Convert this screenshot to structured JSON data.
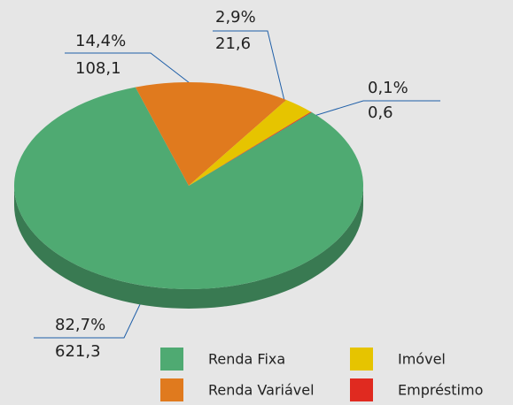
{
  "chart_data": {
    "type": "pie",
    "categories": [
      "Renda Fixa",
      "Renda Variável",
      "Imóvel",
      "Empréstimo"
    ],
    "values": [
      82.7,
      14.4,
      2.9,
      0.1
    ],
    "value_labels": [
      "82,7%",
      "14,4%",
      "2,9%",
      "0,1%"
    ],
    "amounts": [
      621.3,
      108.1,
      21.6,
      0.6
    ],
    "amount_labels": [
      "621,3",
      "108,1",
      "21,6",
      "0,6"
    ],
    "colors": [
      "#4faa72",
      "#e07a1e",
      "#e6c400",
      "#e02a20"
    ],
    "legend": "bottom-right"
  }
}
